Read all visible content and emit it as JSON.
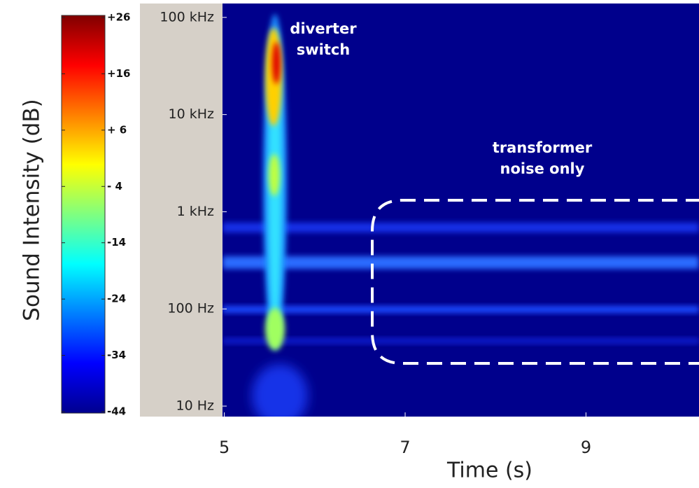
{
  "chart_data": {
    "type": "heatmap",
    "xlabel": "Time (s)",
    "xlim": [
      4.98,
      10.25
    ],
    "xticks": [
      5,
      7,
      9
    ],
    "yscale": "log",
    "ylim": [
      7.8,
      139000
    ],
    "yticks": [
      {
        "value": 100000,
        "label": "100 kHz"
      },
      {
        "value": 10000,
        "label": "10 kHz"
      },
      {
        "value": 1000,
        "label": "1 kHz"
      },
      {
        "value": 100,
        "label": "100 Hz"
      },
      {
        "value": 10,
        "label": "10 Hz"
      }
    ],
    "colorbar": {
      "label": "Sound Intensity (dB)",
      "colormap": "jet",
      "clim": [
        -44,
        26
      ],
      "ticks": [
        {
          "value": 26,
          "label": "+26"
        },
        {
          "value": 16,
          "label": "+16"
        },
        {
          "value": 6,
          "label": "+ 6"
        },
        {
          "value": -4,
          "label": "- 4"
        },
        -14,
        -24,
        -34,
        -44
      ]
    },
    "annotations": [
      {
        "lines": [
          "diverter",
          "switch"
        ]
      },
      {
        "lines": [
          "transformer",
          "noise only"
        ]
      }
    ]
  }
}
